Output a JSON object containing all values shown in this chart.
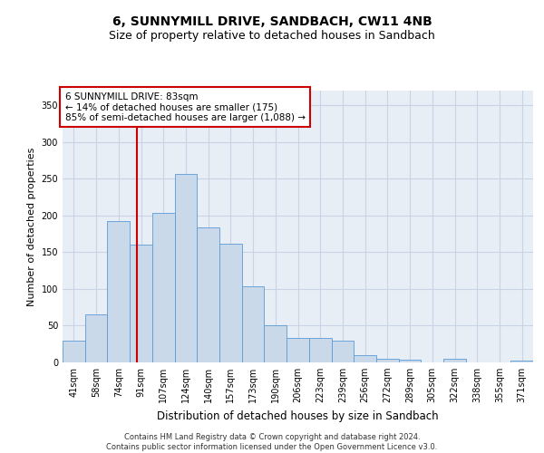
{
  "title": "6, SUNNYMILL DRIVE, SANDBACH, CW11 4NB",
  "subtitle": "Size of property relative to detached houses in Sandbach",
  "xlabel": "Distribution of detached houses by size in Sandbach",
  "ylabel": "Number of detached properties",
  "bar_color": "#c9d9ea",
  "bar_edge_color": "#5b9bd5",
  "grid_color": "#c8d4e4",
  "background_color": "#e8eef6",
  "categories": [
    "41sqm",
    "58sqm",
    "74sqm",
    "91sqm",
    "107sqm",
    "124sqm",
    "140sqm",
    "157sqm",
    "173sqm",
    "190sqm",
    "206sqm",
    "223sqm",
    "239sqm",
    "256sqm",
    "272sqm",
    "289sqm",
    "305sqm",
    "322sqm",
    "338sqm",
    "355sqm",
    "371sqm"
  ],
  "values": [
    30,
    65,
    193,
    160,
    203,
    257,
    184,
    162,
    103,
    50,
    33,
    33,
    30,
    10,
    5,
    4,
    0,
    5,
    0,
    0,
    3
  ],
  "ylim": [
    0,
    370
  ],
  "yticks": [
    0,
    50,
    100,
    150,
    200,
    250,
    300,
    350
  ],
  "annotation_box_text": "6 SUNNYMILL DRIVE: 83sqm\n← 14% of detached houses are smaller (175)\n85% of semi-detached houses are larger (1,088) →",
  "vline_x": 2.82,
  "red_line_color": "#cc0000",
  "footer_line1": "Contains HM Land Registry data © Crown copyright and database right 2024.",
  "footer_line2": "Contains public sector information licensed under the Open Government Licence v3.0.",
  "title_fontsize": 10,
  "subtitle_fontsize": 9,
  "annot_fontsize": 7.5,
  "tick_fontsize": 7,
  "ylabel_fontsize": 8,
  "xlabel_fontsize": 8.5,
  "footer_fontsize": 6
}
